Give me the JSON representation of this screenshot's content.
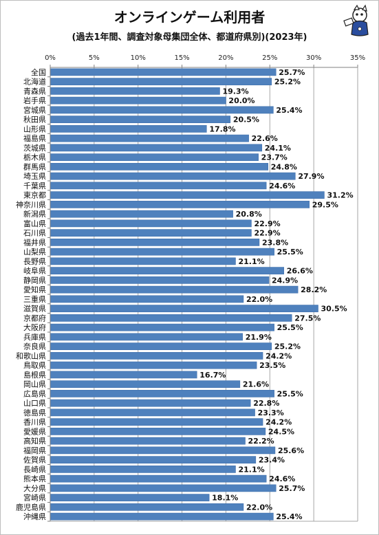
{
  "chart_data": {
    "type": "bar",
    "orientation": "horizontal",
    "title": "オンラインゲーム利用者",
    "subtitle": "(過去1年間、調査対象母集団全体、都道府県別)(2023年)",
    "xlim": [
      0,
      35
    ],
    "x_ticks": [
      0,
      5,
      10,
      15,
      20,
      25,
      30,
      35
    ],
    "tick_suffix": "%",
    "value_suffix": "%",
    "grid": true,
    "bar_color": "#4f81bd",
    "categories": [
      "全国",
      "北海道",
      "青森県",
      "岩手県",
      "宮城県",
      "秋田県",
      "山形県",
      "福島県",
      "茨城県",
      "栃木県",
      "群馬県",
      "埼玉県",
      "千葉県",
      "東京都",
      "神奈川県",
      "新潟県",
      "富山県",
      "石川県",
      "福井県",
      "山梨県",
      "長野県",
      "岐阜県",
      "静岡県",
      "愛知県",
      "三重県",
      "滋賀県",
      "京都府",
      "大阪府",
      "兵庫県",
      "奈良県",
      "和歌山県",
      "鳥取県",
      "島根県",
      "岡山県",
      "広島県",
      "山口県",
      "徳島県",
      "香川県",
      "愛媛県",
      "高知県",
      "福岡県",
      "佐賀県",
      "長崎県",
      "熊本県",
      "大分県",
      "宮崎県",
      "鹿児島県",
      "沖縄県"
    ],
    "values": [
      25.7,
      25.2,
      19.3,
      20.0,
      25.4,
      20.5,
      17.8,
      22.6,
      24.1,
      23.7,
      24.8,
      27.9,
      24.6,
      31.2,
      29.5,
      20.8,
      22.9,
      22.9,
      23.8,
      25.5,
      21.1,
      26.6,
      24.9,
      28.2,
      22.0,
      30.5,
      27.5,
      25.5,
      21.9,
      25.2,
      24.2,
      23.5,
      16.7,
      21.6,
      25.5,
      22.8,
      23.3,
      24.2,
      24.5,
      22.2,
      25.6,
      23.4,
      21.1,
      24.6,
      25.7,
      18.1,
      22.0,
      25.4
    ]
  }
}
